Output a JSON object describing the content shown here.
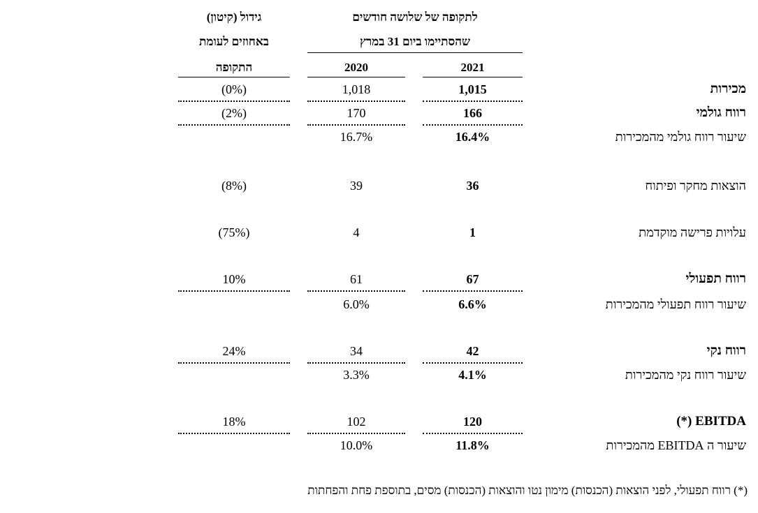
{
  "header": {
    "period_line1": "לתקופה של שלושה חודשים",
    "period_line2": "שהסתיימו ביום 31 במרץ",
    "growth_line1": "גידול (קיטון)",
    "growth_line2": "באחוזים לעומת",
    "growth_line3": "התקופה",
    "year_current": "2021",
    "year_prior": "2020"
  },
  "table": {
    "rows": [
      {
        "label": "מכירות",
        "bold": true,
        "current": "1,015",
        "prior": "1,018",
        "growth": "(0%)"
      },
      {
        "label": "רווח גולמי",
        "bold": true,
        "current": "166",
        "prior": "170",
        "growth": "(2%)"
      },
      {
        "label": "שיעור רווח גולמי מהמכירות",
        "bold": false,
        "current": "16.4%",
        "prior": "16.7%"
      },
      {
        "label": "הוצאות מחקר ופיתוח",
        "bold": false,
        "current": "36",
        "prior": "39",
        "growth": "(8%)"
      },
      {
        "label": "עלויות פרישה מוקדמת",
        "bold": false,
        "current": "1",
        "prior": "4",
        "growth": "(75%)"
      },
      {
        "label": "רווח תפעולי",
        "bold": true,
        "current": "67",
        "prior": "61",
        "growth": "10%"
      },
      {
        "label": "שיעור רווח תפעולי מהמכירות",
        "bold": false,
        "current": "6.6%",
        "prior": "6.0%"
      },
      {
        "label": "רווח נקי",
        "bold": true,
        "current": "42",
        "prior": "34",
        "growth": "24%"
      },
      {
        "label": "שיעור רווח נקי מהמכירות",
        "bold": false,
        "current": "4.1%",
        "prior": "3.3%"
      },
      {
        "label": "EBITDA (*)",
        "bold": true,
        "current": "120",
        "prior": "102",
        "growth": "18%"
      },
      {
        "label": "שיעור ה EBITDA מהמכירות",
        "bold": false,
        "current": "11.8%",
        "prior": "10.0%"
      }
    ]
  },
  "footnote": "(*) רווח תפעולי, לפני הוצאות (הכנסות) מימון נטו והוצאות (הכנסות) מסים, בתוספת פחת והפחתות"
}
